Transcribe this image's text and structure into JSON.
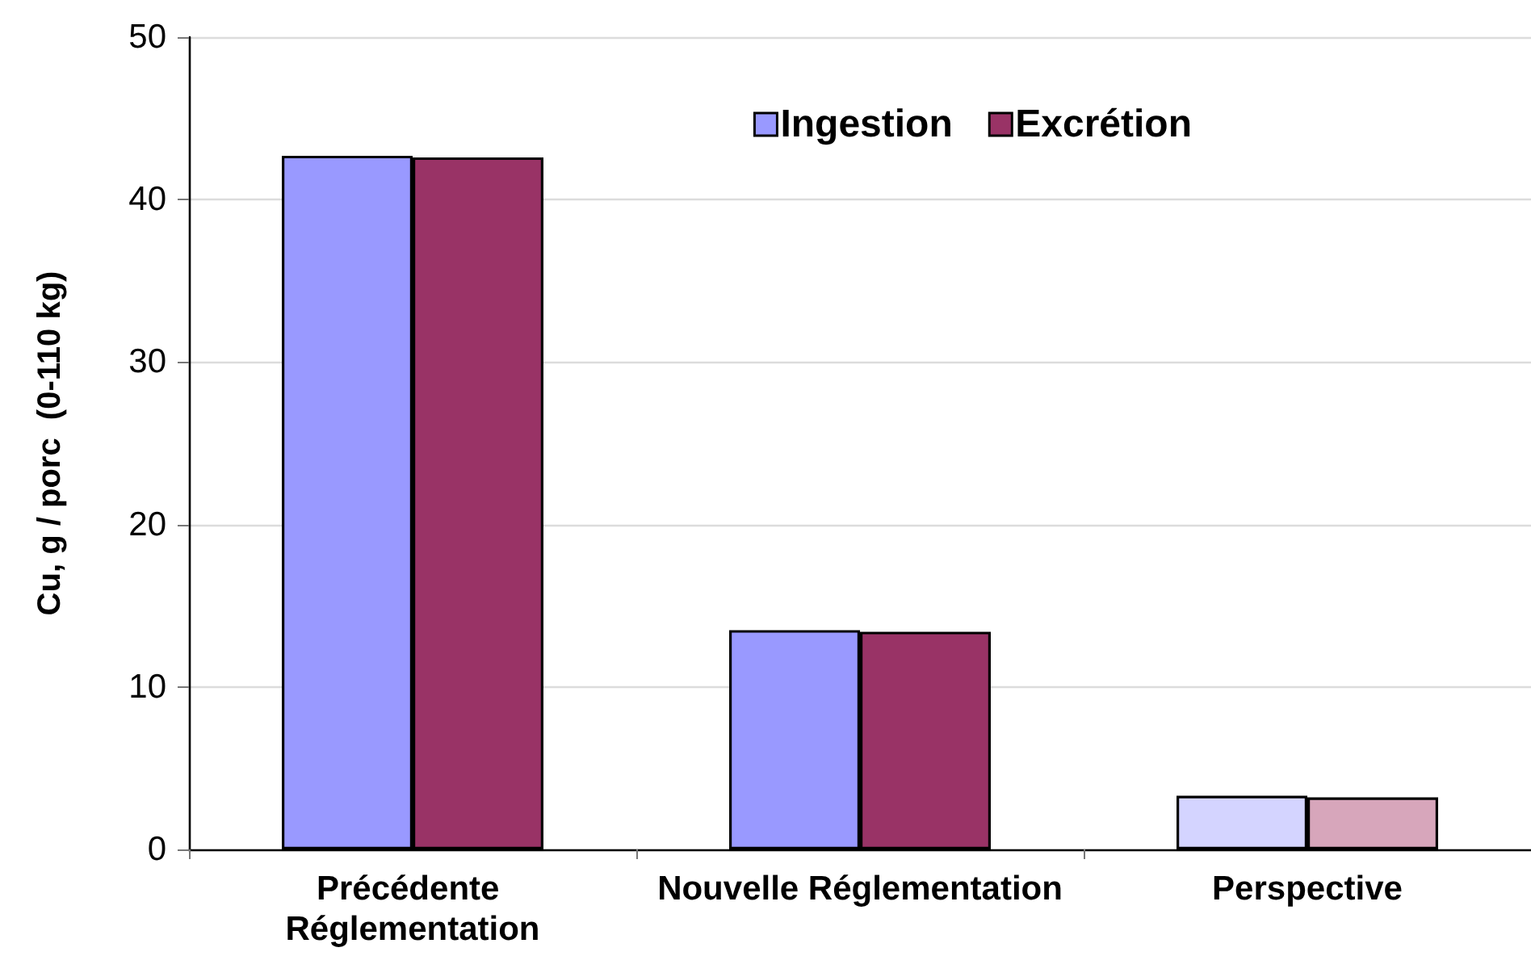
{
  "chart_data": {
    "type": "bar",
    "ylabel": "Cu, g / porc  (0-110 kg)",
    "categories": [
      "Précédente Réglementation",
      "Nouvelle Réglementation",
      "Perspective"
    ],
    "series": [
      {
        "name": "Ingestion",
        "color": "#9999ff",
        "colors": [
          "#9999ff",
          "#9999ff",
          "#d4d4ff"
        ],
        "values": [
          42.7,
          13.5,
          3.3
        ]
      },
      {
        "name": "Excrétion",
        "color": "#993366",
        "colors": [
          "#993366",
          "#993366",
          "#d7a6bb"
        ],
        "values": [
          42.6,
          13.4,
          3.2
        ]
      }
    ],
    "ylim": [
      0,
      50
    ],
    "yticks": [
      0,
      10,
      20,
      30,
      40,
      50
    ],
    "grid": "y",
    "legend": "top right"
  }
}
